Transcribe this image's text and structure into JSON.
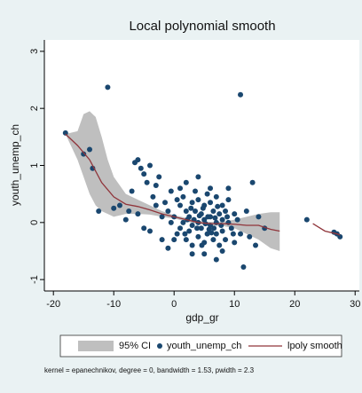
{
  "chart_data": {
    "type": "scatter",
    "title": "Local polynomial smooth",
    "x_label": "gdp_gr",
    "y_label": "youth_unemp_ch",
    "note": "kernel = epanechnikov, degree = 0, bandwidth = 1.53, pwidth = 2.3",
    "xlim": [
      -21.5,
      30.7
    ],
    "ylim": [
      -1.2,
      3.2
    ],
    "xticks": [
      -20,
      -10,
      0,
      10,
      20,
      30
    ],
    "yticks": [
      -1,
      0,
      1,
      2,
      3
    ],
    "grid": false,
    "legend": "bottom",
    "ci": {
      "name": "95% CI",
      "color": "#bfbfbf",
      "x": [
        -18,
        -16,
        -15,
        -14,
        -13,
        -12,
        -11,
        -10,
        -8,
        -6,
        -4,
        -2,
        0,
        2,
        4,
        6,
        8,
        10,
        12,
        14,
        16,
        17.5
      ],
      "upper": [
        1.55,
        1.6,
        1.9,
        1.95,
        1.85,
        1.5,
        1.1,
        0.8,
        0.5,
        0.4,
        0.3,
        0.2,
        0.13,
        0.08,
        0.03,
        0.01,
        0.01,
        0.05,
        0.1,
        0.15,
        0.18,
        0.18
      ],
      "lower": [
        1.55,
        1.1,
        0.8,
        0.5,
        0.3,
        0.2,
        0.15,
        0.1,
        0.15,
        0.15,
        0.14,
        0.1,
        0.07,
        0.02,
        -0.03,
        -0.05,
        -0.06,
        -0.1,
        -0.2,
        -0.3,
        -0.45,
        -0.5
      ]
    },
    "scatter": {
      "name": "youth_unemp_ch",
      "color": "#1a476f",
      "x": [
        -18,
        -15,
        -14,
        -13.5,
        -11,
        -12.5,
        -10,
        -9,
        -8,
        -7,
        -6.5,
        -6,
        -5.5,
        -5,
        -4.5,
        -4,
        -3,
        -7.5,
        -6,
        -5,
        -4,
        -3.5,
        -2.5,
        -2,
        -1,
        -1.5,
        -0.5,
        -3,
        -2,
        -1,
        11,
        13,
        11.5,
        7,
        22,
        26.5,
        27,
        27.5,
        15,
        14,
        12.5,
        13.5,
        0,
        0.5,
        1,
        1,
        1.5,
        1.5,
        2,
        2,
        2.5,
        2.5,
        3,
        3,
        3,
        3.5,
        3.5,
        4,
        4,
        4,
        4.5,
        4.5,
        5,
        5,
        5,
        5.5,
        5.5,
        6,
        6,
        6,
        6.5,
        6.5,
        7,
        7,
        7,
        7.5,
        7.5,
        8,
        8,
        8,
        8.5,
        8.5,
        9,
        9,
        9.5,
        10,
        10,
        10.5,
        11,
        0,
        0.5,
        1,
        2,
        4,
        6,
        3,
        5,
        8,
        9,
        12,
        -0.5,
        2.2,
        3.8,
        4.8,
        5.8,
        6.8,
        7.8,
        8.8,
        9.8,
        1.8,
        2.8,
        4.2,
        5.2,
        6.2,
        7.2,
        3.3,
        5.6,
        6.6,
        4.6
      ],
      "values": [
        1.57,
        1.2,
        1.28,
        0.95,
        2.37,
        0.2,
        0.25,
        0.3,
        0.05,
        0.55,
        1.05,
        1.1,
        0.95,
        0.85,
        0.7,
        1.0,
        0.65,
        0.2,
        0.15,
        -0.1,
        -0.15,
        0.45,
        0.8,
        -0.3,
        -0.45,
        0.35,
        0.55,
        0.3,
        0.1,
        0.2,
        2.24,
        0.7,
        -0.78,
        -0.65,
        0.05,
        -0.17,
        -0.2,
        -0.25,
        -0.1,
        0.1,
        -0.25,
        -0.4,
        0.1,
        -0.2,
        0.3,
        -0.1,
        0.45,
        0.0,
        0.2,
        -0.3,
        0.1,
        -0.15,
        0.35,
        -0.05,
        -0.4,
        0.2,
        0.55,
        0.0,
        -0.25,
        0.4,
        0.15,
        -0.1,
        0.3,
        -0.35,
        0.05,
        0.5,
        -0.2,
        0.1,
        -0.05,
        0.35,
        -0.3,
        0.2,
        0.0,
        0.45,
        -0.2,
        0.15,
        -0.4,
        0.05,
        0.3,
        -0.15,
        -0.3,
        0.2,
        0.0,
        0.4,
        -0.1,
        0.15,
        -0.35,
        0.05,
        -0.2,
        -0.3,
        0.4,
        0.6,
        0.7,
        0.8,
        0.6,
        -0.55,
        -0.55,
        -0.5,
        0.6,
        0.2,
        0.0,
        0.05,
        -0.1,
        0.25,
        -0.12,
        0.08,
        -0.05,
        0.1,
        -0.2,
        -0.2,
        0.25,
        0.12,
        -0.02,
        -0.18,
        0.28,
        0.05,
        0.1,
        -0.1,
        -0.4
      ]
    },
    "smooth": {
      "name": "lpoly smooth",
      "color": "#90353b",
      "x": [
        -18,
        -16,
        -14,
        -12,
        -10,
        -8,
        -6,
        -4,
        -2,
        0,
        2,
        4,
        6,
        8,
        10,
        12,
        14,
        16,
        17.5,
        20,
        23,
        25,
        27,
        27.5
      ],
      "values": [
        1.55,
        1.35,
        1.1,
        0.7,
        0.45,
        0.32,
        0.28,
        0.22,
        0.15,
        0.1,
        0.05,
        0.0,
        -0.02,
        -0.02,
        -0.03,
        -0.05,
        -0.05,
        -0.12,
        -0.15,
        null,
        -0.02,
        -0.15,
        -0.2,
        -0.22
      ]
    }
  }
}
